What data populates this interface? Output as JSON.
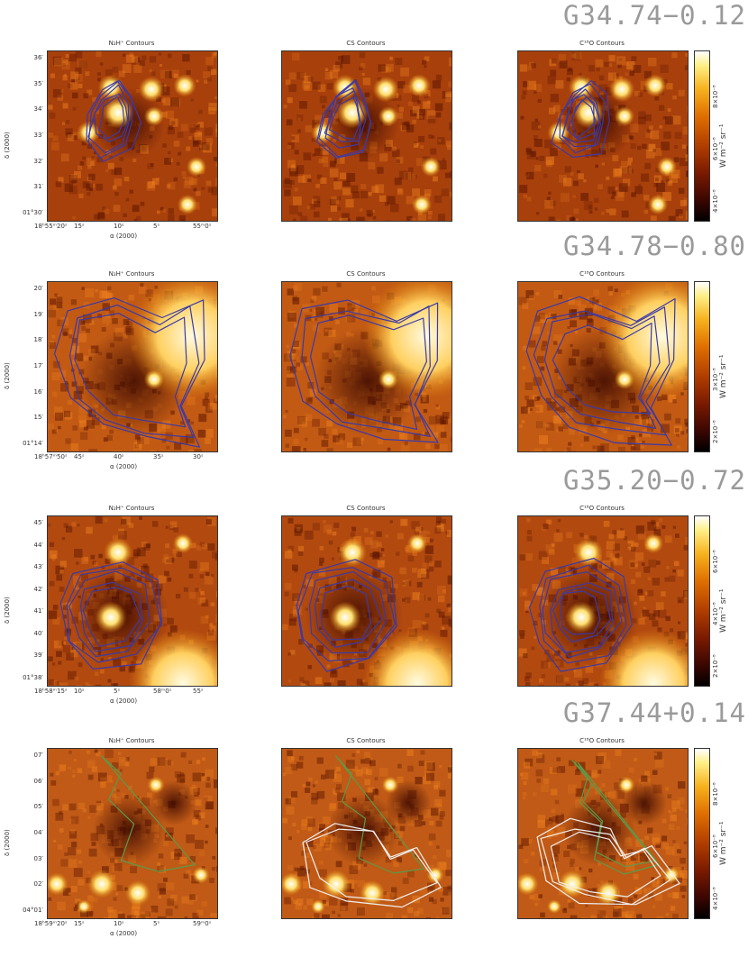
{
  "rows": [
    {
      "source": "G34.74−0.12",
      "titles": [
        "N₂H⁺ Contours",
        "CS Contours",
        "C¹⁸O Contours"
      ],
      "yticks": [
        "36′",
        "35′",
        "34′",
        "33′",
        "32′",
        "31′",
        "01°30′"
      ],
      "xticks": [
        "18ʰ55ᵐ20ˢ",
        "15ˢ",
        "10ˢ",
        "5ˢ",
        "55ᵐ0ˢ"
      ],
      "ylabel": "δ (2000)",
      "xlabel": "α (2000)",
      "cbar_ticks": [
        "4×10⁻⁸",
        "6×10⁻⁸",
        "8×10⁻⁸"
      ],
      "cbar_unit": "W m⁻² sr⁻¹"
    },
    {
      "source": "G34.78−0.80",
      "titles": [
        "N₂H⁺ Contours",
        "CS Contours",
        "C¹⁸O Contours"
      ],
      "yticks": [
        "20′",
        "19′",
        "18′",
        "17′",
        "16′",
        "15′",
        "01°14′"
      ],
      "xticks": [
        "18ʰ57ᵐ50ˢ",
        "45ˢ",
        "40ˢ",
        "35ˢ",
        "30ˢ"
      ],
      "ylabel": "δ (2000)",
      "xlabel": "α (2000)",
      "cbar_ticks": [
        "2×10⁻⁸",
        "3×10⁻⁸"
      ],
      "cbar_unit": "W m⁻² sr⁻¹"
    },
    {
      "source": "G35.20−0.72",
      "titles": [
        "N₂H⁺ Contours",
        "CS Contours",
        "C¹⁸O Contours"
      ],
      "yticks": [
        "45′",
        "44′",
        "43′",
        "42′",
        "41′",
        "40′",
        "39′",
        "01°38′"
      ],
      "xticks": [
        "18ʰ58ᵐ15ˢ",
        "10ˢ",
        "5ˢ",
        "58ᵐ0ˢ",
        "55ˢ"
      ],
      "ylabel": "δ (2000)",
      "xlabel": "α (2000)",
      "cbar_ticks": [
        "2×10⁻⁸",
        "4×10⁻⁸",
        "6×10⁻⁸"
      ],
      "cbar_unit": "W m⁻² sr⁻¹"
    },
    {
      "source": "G37.44+0.14",
      "titles": [
        "N₂H⁺ Contours",
        "CS Contours",
        "C¹⁸O Contours"
      ],
      "yticks": [
        "07′",
        "06′",
        "05′",
        "04′",
        "03′",
        "02′",
        "04°01′"
      ],
      "xticks": [
        "18ʰ59ᵐ20ˢ",
        "15ˢ",
        "10ˢ",
        "5ˢ",
        "59ᵐ0ˢ"
      ],
      "ylabel": "δ (2000)",
      "xlabel": "α (2000)",
      "cbar_ticks": [
        "4×10⁻⁸",
        "6×10⁻⁸",
        "8×10⁻⁸"
      ],
      "cbar_unit": "W m⁻² sr⁻¹"
    }
  ],
  "colors": {
    "contour_blue": "#3a3aa8",
    "contour_green": "#5a9a4a",
    "contour_white": "#f0f0f0",
    "map_mid": "#b8480c"
  }
}
